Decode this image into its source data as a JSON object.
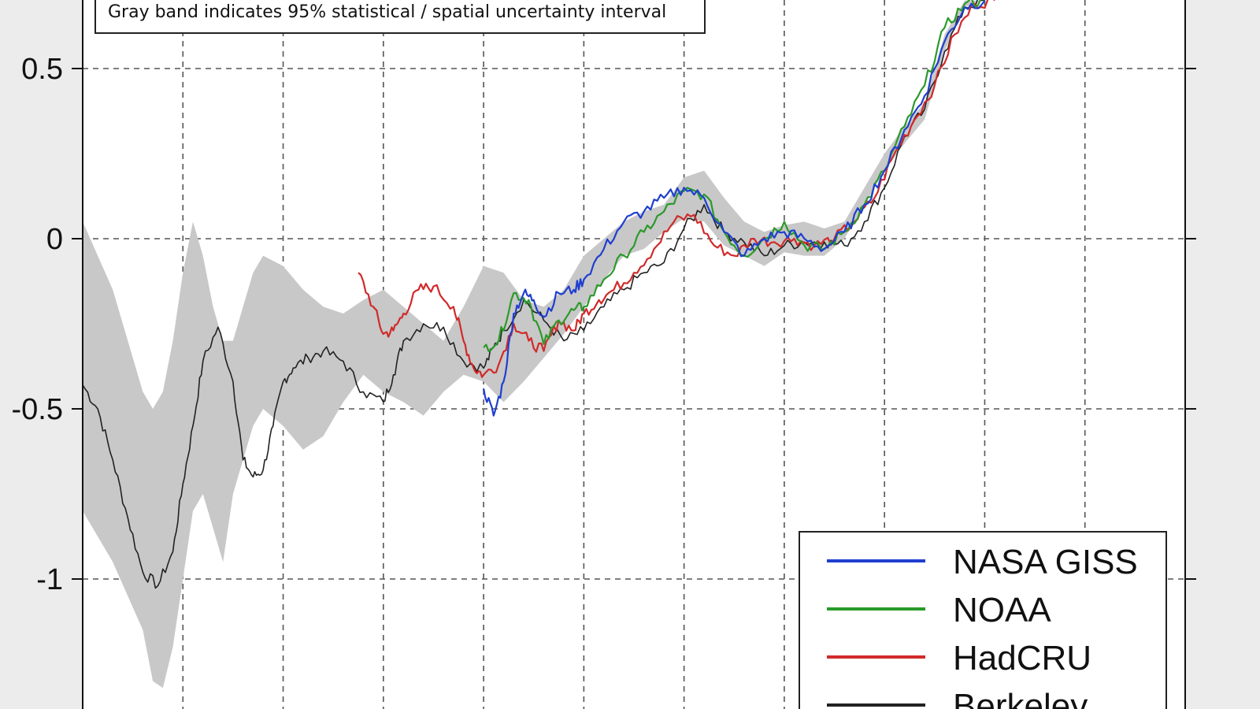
{
  "chart_data": {
    "type": "line",
    "annotation": "Gray band indicates 95% statistical / spatial uncertainty interval",
    "ylim": [
      -1.35,
      0.7
    ],
    "xlim": [
      0,
      11
    ],
    "yticks": [
      {
        "value": 0.5,
        "label": "0.5"
      },
      {
        "value": 0,
        "label": "0"
      },
      {
        "value": -0.5,
        "label": "-0.5"
      },
      {
        "value": -1,
        "label": "-1"
      }
    ],
    "xgrid": [
      1,
      2,
      3,
      4,
      5,
      6,
      7,
      8,
      9,
      10,
      11
    ],
    "grid": true,
    "legend_position": "bottom-right",
    "legend": [
      {
        "label": "NASA GISS",
        "color": "#1f3fd0"
      },
      {
        "label": "NOAA",
        "color": "#2a9a2a"
      },
      {
        "label": "HadCRU",
        "color": "#d12a2a"
      },
      {
        "label": "Berkeley",
        "color": "#222222"
      }
    ],
    "uncertainty_band": {
      "color": "#c8c8c8",
      "x": [
        0.0,
        0.3,
        0.6,
        0.7,
        0.8,
        0.9,
        1.0,
        1.1,
        1.2,
        1.3,
        1.4,
        1.5,
        1.6,
        1.7,
        1.8,
        2.0,
        2.2,
        2.4,
        2.6,
        2.8,
        3.0,
        3.2,
        3.4,
        3.6,
        3.8,
        4.0,
        4.2,
        4.4,
        4.6,
        4.8,
        5.0,
        5.2,
        5.4,
        5.6,
        5.8,
        6.0,
        6.2,
        6.4,
        6.6,
        6.8,
        7.0,
        7.2,
        7.4,
        7.6,
        7.8,
        8.0,
        8.2,
        8.4,
        8.6,
        8.8,
        9.0,
        9.2,
        9.4,
        9.6,
        9.8,
        10.0,
        10.2,
        10.4
      ],
      "upper": [
        0.05,
        -0.15,
        -0.45,
        -0.5,
        -0.45,
        -0.3,
        -0.1,
        0.05,
        -0.05,
        -0.2,
        -0.3,
        -0.3,
        -0.2,
        -0.1,
        -0.05,
        -0.08,
        -0.15,
        -0.2,
        -0.22,
        -0.18,
        -0.15,
        -0.2,
        -0.25,
        -0.3,
        -0.2,
        -0.08,
        -0.1,
        -0.18,
        -0.2,
        -0.15,
        -0.05,
        0.0,
        0.05,
        0.08,
        0.1,
        0.18,
        0.2,
        0.12,
        0.05,
        0.02,
        0.04,
        0.05,
        0.03,
        0.05,
        0.15,
        0.25,
        0.33,
        0.4,
        0.6,
        0.7,
        0.7,
        0.7,
        0.7,
        0.7,
        0.7,
        0.7,
        0.7,
        0.7
      ],
      "lower": [
        -0.8,
        -0.95,
        -1.15,
        -1.3,
        -1.32,
        -1.2,
        -1.0,
        -0.8,
        -0.75,
        -0.85,
        -0.95,
        -0.75,
        -0.65,
        -0.55,
        -0.5,
        -0.55,
        -0.62,
        -0.58,
        -0.48,
        -0.4,
        -0.45,
        -0.48,
        -0.52,
        -0.45,
        -0.4,
        -0.42,
        -0.48,
        -0.42,
        -0.35,
        -0.28,
        -0.2,
        -0.12,
        -0.05,
        -0.03,
        0.02,
        0.06,
        0.05,
        -0.02,
        -0.05,
        -0.08,
        -0.04,
        -0.05,
        -0.05,
        0.0,
        0.1,
        0.2,
        0.28,
        0.35,
        0.55,
        0.68,
        0.7,
        0.7,
        0.7,
        0.7,
        0.7,
        0.7,
        0.7,
        0.7
      ]
    },
    "series": [
      {
        "name": "Berkeley",
        "color": "#222222",
        "x": [
          0.0,
          0.15,
          0.3,
          0.45,
          0.6,
          0.75,
          0.9,
          1.0,
          1.1,
          1.2,
          1.35,
          1.5,
          1.6,
          1.7,
          1.8,
          1.9,
          2.0,
          2.1,
          2.25,
          2.4,
          2.6,
          2.8,
          3.0,
          3.1,
          3.2,
          3.4,
          3.6,
          3.8,
          4.0,
          4.1,
          4.2,
          4.4,
          4.6,
          4.8,
          5.0,
          5.2,
          5.4,
          5.6,
          5.8,
          6.0,
          6.2,
          6.4,
          6.6,
          6.8,
          7.0,
          7.2,
          7.4,
          7.6,
          7.8,
          8.0,
          8.2,
          8.4,
          8.6,
          8.8,
          9.0
        ],
        "y": [
          -0.43,
          -0.5,
          -0.65,
          -0.82,
          -0.98,
          -1.02,
          -0.92,
          -0.72,
          -0.55,
          -0.36,
          -0.26,
          -0.42,
          -0.65,
          -0.7,
          -0.68,
          -0.55,
          -0.42,
          -0.38,
          -0.35,
          -0.33,
          -0.36,
          -0.45,
          -0.48,
          -0.4,
          -0.3,
          -0.25,
          -0.26,
          -0.36,
          -0.38,
          -0.32,
          -0.27,
          -0.18,
          -0.24,
          -0.3,
          -0.27,
          -0.2,
          -0.15,
          -0.1,
          -0.07,
          0.03,
          0.1,
          0.02,
          -0.01,
          -0.05,
          -0.02,
          -0.01,
          -0.01,
          -0.02,
          0.05,
          0.15,
          0.3,
          0.38,
          0.55,
          0.68,
          0.7
        ]
      },
      {
        "name": "HadCRU",
        "color": "#d12a2a",
        "x": [
          2.75,
          2.9,
          3.0,
          3.1,
          3.2,
          3.35,
          3.5,
          3.7,
          3.8,
          3.9,
          4.0,
          4.15,
          4.3,
          4.45,
          4.6,
          4.75,
          4.9,
          5.0,
          5.15,
          5.3,
          5.5,
          5.7,
          5.9,
          6.1,
          6.3,
          6.5,
          6.7,
          6.9,
          7.1,
          7.3,
          7.5,
          7.7,
          7.9,
          8.1,
          8.3,
          8.5,
          8.7,
          8.9,
          9.1
        ],
        "y": [
          -0.1,
          -0.2,
          -0.28,
          -0.27,
          -0.22,
          -0.15,
          -0.14,
          -0.2,
          -0.3,
          -0.38,
          -0.4,
          -0.37,
          -0.25,
          -0.3,
          -0.33,
          -0.24,
          -0.27,
          -0.22,
          -0.18,
          -0.15,
          -0.1,
          -0.03,
          0.05,
          0.07,
          -0.02,
          -0.05,
          0.0,
          -0.01,
          0.0,
          -0.02,
          0.0,
          0.05,
          0.12,
          0.25,
          0.35,
          0.45,
          0.6,
          0.69,
          0.7
        ]
      },
      {
        "name": "NOAA",
        "color": "#2a9a2a",
        "x": [
          4.0,
          4.15,
          4.3,
          4.45,
          4.6,
          4.75,
          4.9,
          5.0,
          5.2,
          5.4,
          5.6,
          5.8,
          6.0,
          6.2,
          6.4,
          6.6,
          6.8,
          7.0,
          7.2,
          7.4,
          7.6,
          7.8,
          8.0,
          8.2,
          8.4,
          8.6,
          8.8,
          9.0
        ],
        "y": [
          -0.32,
          -0.3,
          -0.16,
          -0.18,
          -0.31,
          -0.24,
          -0.21,
          -0.2,
          -0.12,
          -0.05,
          0.02,
          0.08,
          0.14,
          0.13,
          0.02,
          -0.05,
          0.0,
          0.05,
          -0.02,
          -0.03,
          0.02,
          0.1,
          0.2,
          0.33,
          0.45,
          0.62,
          0.69,
          0.7
        ]
      },
      {
        "name": "NASA GISS",
        "color": "#1f3fd0",
        "x": [
          4.0,
          4.1,
          4.2,
          4.3,
          4.4,
          4.5,
          4.6,
          4.75,
          4.9,
          5.0,
          5.2,
          5.4,
          5.6,
          5.8,
          6.0,
          6.2,
          6.4,
          6.6,
          6.8,
          7.0,
          7.2,
          7.4,
          7.6,
          7.8,
          8.0,
          8.2,
          8.4,
          8.6,
          8.8,
          9.0
        ],
        "y": [
          -0.44,
          -0.52,
          -0.42,
          -0.22,
          -0.16,
          -0.18,
          -0.23,
          -0.16,
          -0.15,
          -0.12,
          -0.03,
          0.05,
          0.08,
          0.12,
          0.15,
          0.12,
          0.02,
          -0.05,
          0.0,
          0.02,
          0.0,
          -0.03,
          0.02,
          0.1,
          0.2,
          0.32,
          0.42,
          0.58,
          0.68,
          0.7
        ]
      }
    ]
  }
}
